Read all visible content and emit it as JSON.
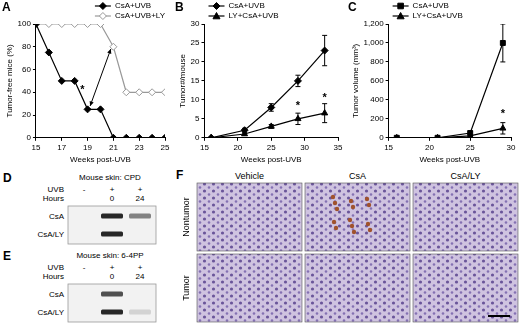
{
  "chart_data": [
    {
      "type": "line",
      "panel": "A",
      "x": [
        15,
        16,
        17,
        18,
        19,
        20,
        21,
        22,
        23,
        24,
        25
      ],
      "series": [
        {
          "name": "CsA+UVB",
          "color": "#000000",
          "marker": "diamond",
          "values": [
            100,
            75,
            50,
            50,
            25,
            25,
            0,
            0,
            0,
            0,
            0
          ]
        },
        {
          "name": "CsA+UVB+LY",
          "color": "#999999",
          "marker": "open_diamond",
          "values": [
            100,
            100,
            100,
            100,
            100,
            100,
            80,
            40,
            40,
            40,
            40
          ]
        }
      ],
      "xlim": [
        15,
        25
      ],
      "xticks": [
        15,
        17,
        19,
        21,
        23,
        25
      ],
      "ylim": [
        0,
        100
      ],
      "yticks": [
        0,
        20,
        40,
        60,
        80,
        100
      ],
      "x_label": "Weeks post-UVB",
      "y_label": "Tumor-free mice (%)",
      "legend": "upper right",
      "grid": false,
      "annotations": [
        {
          "text": "*",
          "x": 18.6,
          "y": 42
        }
      ],
      "arrows": [
        {
          "from": [
            19.2,
            28
          ],
          "to": [
            20.8,
            78
          ]
        }
      ]
    },
    {
      "type": "line",
      "panel": "B",
      "x": [
        16,
        21,
        25,
        29,
        33
      ],
      "series": [
        {
          "name": "CsA+UVB",
          "color": "#000000",
          "marker": "diamond",
          "values": [
            0,
            2,
            8,
            15,
            23
          ],
          "errors": [
            0,
            0.5,
            1,
            1.5,
            4
          ]
        },
        {
          "name": "LY+CsA+UVB",
          "color": "#000000",
          "marker": "triangle",
          "values": [
            0,
            1,
            3,
            5,
            6.5
          ],
          "errors": [
            0,
            0.3,
            0.5,
            1.5,
            2.5
          ]
        }
      ],
      "xlim": [
        15,
        35
      ],
      "xticks": [
        15,
        20,
        25,
        30,
        35
      ],
      "ylim": [
        0,
        30
      ],
      "yticks": [
        0,
        5,
        10,
        15,
        20,
        25,
        30
      ],
      "x_label": "Weeks post-UVB",
      "y_label": "Tumor#/mouse",
      "legend": "upper left",
      "grid": false,
      "annotations": [
        {
          "text": "*",
          "x": 29,
          "y": 8.5
        },
        {
          "text": "*",
          "x": 33,
          "y": 10.5
        }
      ]
    },
    {
      "type": "line",
      "panel": "C",
      "x": [
        16,
        21,
        25,
        29
      ],
      "series": [
        {
          "name": "CsA+UVB",
          "color": "#000000",
          "marker": "square",
          "values": [
            0,
            0,
            50,
            1000
          ],
          "errors": [
            0,
            0,
            20,
            200
          ]
        },
        {
          "name": "LY+CsA+UVB",
          "color": "#000000",
          "marker": "triangle",
          "values": [
            0,
            0,
            20,
            100
          ],
          "errors": [
            0,
            0,
            10,
            60
          ]
        }
      ],
      "xlim": [
        15,
        30
      ],
      "xticks": [
        15,
        20,
        25,
        30
      ],
      "ylim": [
        0,
        1200
      ],
      "yticks": [
        0,
        200,
        400,
        600,
        800,
        {
          "value": 1000,
          "label": "1,000"
        },
        {
          "value": 1200,
          "label": "1,200"
        }
      ],
      "x_label": "Weeks post-UVB",
      "y_label": "Tumor volume (mm³)",
      "legend": "upper left",
      "grid": false,
      "annotations": [
        {
          "text": "*",
          "x": 29,
          "y": 250
        }
      ]
    }
  ],
  "blots": [
    {
      "panel": "D",
      "title": "Mouse skin: CPD",
      "header": [
        {
          "label": "UVB",
          "values": [
            "-",
            "+",
            "+"
          ]
        },
        {
          "label": "Hours",
          "values": [
            null,
            "0",
            "24"
          ]
        }
      ],
      "rows": [
        {
          "label": "CsA",
          "bands": [
            0,
            1,
            0.55
          ]
        },
        {
          "label": "CsA/LY",
          "bands": [
            0,
            1,
            0
          ]
        }
      ]
    },
    {
      "panel": "E",
      "title": "Mouse skin: 6-4PP",
      "header": [
        {
          "label": "UVB",
          "values": [
            "-",
            "+",
            "+"
          ]
        },
        {
          "label": "Hours",
          "values": [
            null,
            "0",
            "24"
          ]
        }
      ],
      "rows": [
        {
          "label": "CsA",
          "bands": [
            0,
            0.8,
            0
          ]
        },
        {
          "label": "CsA/LY",
          "bands": [
            0,
            1,
            0.15
          ]
        }
      ]
    }
  ],
  "histology": {
    "panel": "F",
    "columns": [
      "Vehicle",
      "CsA",
      "CsA/LY"
    ],
    "rows": [
      {
        "label": "Nontumor",
        "staining": [
          false,
          true,
          false
        ]
      },
      {
        "label": "Tumor",
        "staining": [
          false,
          false,
          false
        ]
      }
    ]
  }
}
